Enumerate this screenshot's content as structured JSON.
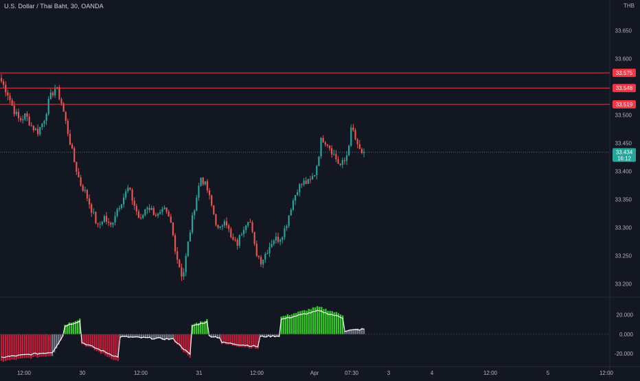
{
  "header": {
    "title": "U.S. Dollar / Thai Baht, 30, OANDA",
    "currency": "THB"
  },
  "colors": {
    "background": "#131722",
    "up": "#26a69a",
    "down": "#ef5350",
    "level_line": "#f23645",
    "price_line": "#26a69a",
    "osc_green": "#34c924",
    "osc_red": "#c41e3a",
    "osc_gray": "#787b86",
    "axis_text": "#b2b5be"
  },
  "chart_data": [
    {
      "type": "candlestick",
      "title": "",
      "y_ticks": [
        "33.650",
        "33.600",
        "33.550",
        "33.500",
        "33.450",
        "33.400",
        "33.350",
        "33.300",
        "33.250",
        "33.200"
      ],
      "ylim": [
        33.18,
        33.68
      ],
      "x_ticks": [
        "12:00",
        "30",
        "12:00",
        "31",
        "12:00",
        "Apr",
        "07:30",
        "3",
        "4",
        "12:00",
        "5",
        "12:00"
      ],
      "levels": [
        {
          "label": "33.575",
          "value": 33.575
        },
        {
          "label": "33.548",
          "value": 33.548
        },
        {
          "label": "33.519",
          "value": 33.519
        }
      ],
      "last_price": {
        "label": "33.434",
        "countdown": "16:12",
        "value": 33.434
      },
      "anchors": [
        33.56,
        33.54,
        33.51,
        33.49,
        33.5,
        33.48,
        33.47,
        33.49,
        33.53,
        33.55,
        33.52,
        33.47,
        33.42,
        33.38,
        33.36,
        33.33,
        33.3,
        33.32,
        33.3,
        33.33,
        33.35,
        33.37,
        33.34,
        33.31,
        33.34,
        33.33,
        33.32,
        33.33,
        33.31,
        33.25,
        33.21,
        33.28,
        33.34,
        33.39,
        33.37,
        33.33,
        33.29,
        33.32,
        33.28,
        33.27,
        33.3,
        33.32,
        33.26,
        33.24,
        33.26,
        33.28,
        33.28,
        33.3,
        33.34,
        33.37,
        33.38,
        33.38,
        33.4,
        33.46,
        33.45,
        33.43,
        33.41,
        33.42,
        33.48,
        33.44,
        33.43
      ],
      "candle_count": 170
    },
    {
      "type": "histogram",
      "y_ticks": [
        "20.000",
        "0.000",
        "-20.000"
      ],
      "ylim": [
        -32,
        36
      ],
      "segments": [
        {
          "color": "red",
          "from": -28,
          "to": -22,
          "steps": 24
        },
        {
          "color": "gray",
          "from": -22,
          "to": -2,
          "steps": 6
        },
        {
          "color": "green",
          "from": 10,
          "to": 16,
          "steps": 8
        },
        {
          "color": "red",
          "from": -10,
          "to": -28,
          "steps": 18
        },
        {
          "color": "gray",
          "from": -3,
          "to": -6,
          "steps": 26
        },
        {
          "color": "red",
          "from": -8,
          "to": -25,
          "steps": 8
        },
        {
          "color": "green",
          "from": 10,
          "to": 15,
          "steps": 8
        },
        {
          "color": "gray",
          "from": -2,
          "to": -4,
          "steps": 6
        },
        {
          "color": "red",
          "from": -10,
          "to": -15,
          "steps": 18
        },
        {
          "color": "gray",
          "from": -3,
          "to": -2,
          "steps": 10
        },
        {
          "color": "green",
          "from": 18,
          "to": 28,
          "steps": 18
        },
        {
          "color": "green",
          "from": 28,
          "to": 20,
          "steps": 12
        },
        {
          "color": "gray",
          "from": 4,
          "to": 6,
          "steps": 10
        }
      ]
    }
  ]
}
